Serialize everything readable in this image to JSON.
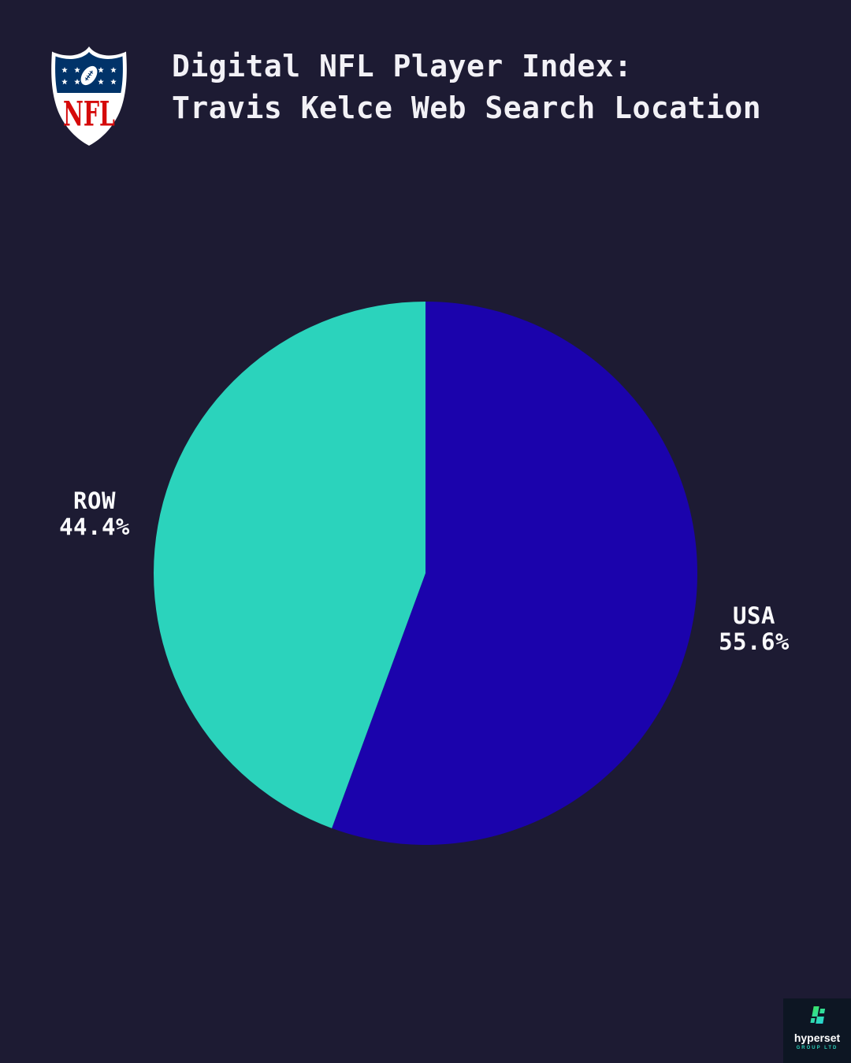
{
  "page": {
    "background_color": "#1D1B33"
  },
  "header": {
    "logo": "nfl-shield",
    "title_line1": "Digital NFL Player Index:",
    "title_line2": "Travis Kelce Web Search Location"
  },
  "chart_data": {
    "type": "pie",
    "title": "Digital NFL Player Index: Travis Kelce Web Search Location",
    "slices": [
      {
        "label": "USA",
        "value": 55.6,
        "display": "55.6%",
        "color": "#1B03AC"
      },
      {
        "label": "ROW",
        "value": 44.4,
        "display": "44.4%",
        "color": "#2BD3BC"
      }
    ],
    "start_angle_deg": -90,
    "direction": "clockwise",
    "legend_position": "none",
    "labels_outside": true,
    "background_color": "#1D1B33",
    "label_color": "#FAFAFC"
  },
  "footer": {
    "brand": "hyperset",
    "brand_sub": "GROUP LTD",
    "brand_accent": "#2BD3BC"
  },
  "nfl_logo": {
    "text": "NFL",
    "shield_blue": "#013369",
    "shield_red": "#D50A0A"
  }
}
